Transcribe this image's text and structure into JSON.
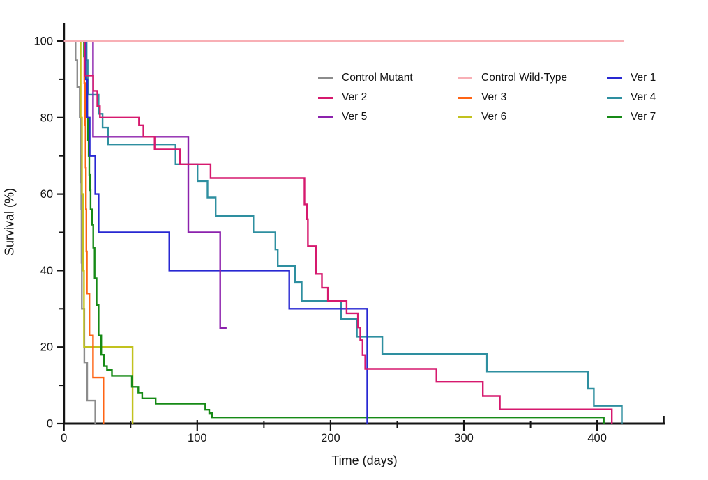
{
  "chart_data": {
    "type": "line",
    "subtype": "kaplan-meier-step-survival",
    "title": "",
    "xlabel": "Time (days)",
    "ylabel": "Survival (%)",
    "xlim": [
      0,
      450
    ],
    "ylim": [
      0,
      100
    ],
    "x_major_ticks": [
      0,
      100,
      200,
      300,
      400
    ],
    "x_minor_ticks": [
      50,
      150,
      250,
      350,
      450
    ],
    "y_major_ticks": [
      0,
      20,
      40,
      60,
      80,
      100
    ],
    "y_minor_ticks": [
      10,
      30,
      50,
      70,
      90
    ],
    "grid": false,
    "background": "#ffffff",
    "axis_color": "#141414",
    "legend_position": "inside-top-right",
    "legend_columns": [
      [
        "Control Mutant",
        "Ver 2",
        "Ver 5"
      ],
      [
        "Control Wild-Type",
        "Ver 3",
        "Ver 6"
      ],
      [
        "Ver 1",
        "Ver 4",
        "Ver 7"
      ]
    ],
    "series": [
      {
        "name": "Control Mutant",
        "color": "#8C8C8C",
        "points": [
          [
            0,
            100
          ],
          [
            8.7,
            95
          ],
          [
            10,
            88
          ],
          [
            11.8,
            80
          ],
          [
            12.3,
            70
          ],
          [
            12.7,
            63
          ],
          [
            13,
            56
          ],
          [
            13.2,
            42
          ],
          [
            13.4,
            30
          ],
          [
            15.3,
            16
          ],
          [
            17.4,
            6
          ],
          [
            23.5,
            0
          ]
        ]
      },
      {
        "name": "Ver 6",
        "color": "#C2C21E",
        "points": [
          [
            0,
            100
          ],
          [
            12.5,
            80
          ],
          [
            13.5,
            60
          ],
          [
            14.3,
            40
          ],
          [
            15,
            20
          ],
          [
            51.5,
            0
          ]
        ]
      },
      {
        "name": "Ver 3",
        "color": "#FF6414",
        "points": [
          [
            0,
            100
          ],
          [
            15.3,
            89
          ],
          [
            15.8,
            78
          ],
          [
            16.2,
            67
          ],
          [
            16.5,
            56
          ],
          [
            16.8,
            45
          ],
          [
            17.2,
            34
          ],
          [
            19.1,
            23
          ],
          [
            21.8,
            12
          ],
          [
            29.6,
            0
          ]
        ]
      },
      {
        "name": "Ver 7",
        "color": "#168A16",
        "points": [
          [
            0,
            100
          ],
          [
            15,
            96
          ],
          [
            16,
            91
          ],
          [
            17,
            86
          ],
          [
            17.5,
            80
          ],
          [
            18,
            74
          ],
          [
            18.5,
            70
          ],
          [
            19,
            65
          ],
          [
            19.5,
            61
          ],
          [
            20,
            56
          ],
          [
            21,
            52
          ],
          [
            22,
            46
          ],
          [
            23,
            38
          ],
          [
            24.5,
            31
          ],
          [
            26,
            23
          ],
          [
            28,
            18
          ],
          [
            30,
            15
          ],
          [
            32.3,
            14
          ],
          [
            36,
            12.5
          ],
          [
            50.9,
            9.6
          ],
          [
            55.8,
            8.1
          ],
          [
            58.7,
            6.6
          ],
          [
            68.8,
            5.2
          ],
          [
            106,
            3.6
          ],
          [
            109,
            2.7
          ],
          [
            111.2,
            1.6
          ],
          [
            405,
            0
          ]
        ]
      },
      {
        "name": "Ver 4",
        "color": "#2E8FA0",
        "points": [
          [
            0,
            100
          ],
          [
            17,
            95
          ],
          [
            17.8,
            90
          ],
          [
            18.3,
            86
          ],
          [
            26,
            81
          ],
          [
            29,
            77.4
          ],
          [
            33,
            73
          ],
          [
            83.7,
            67.8
          ],
          [
            100.2,
            63.4
          ],
          [
            107.7,
            59.1
          ],
          [
            113.8,
            54.3
          ],
          [
            142.1,
            50
          ],
          [
            158.6,
            45.5
          ],
          [
            160.4,
            41.2
          ],
          [
            173.4,
            37
          ],
          [
            178.3,
            32.1
          ],
          [
            208,
            27.3
          ],
          [
            219.7,
            22.7
          ],
          [
            238.8,
            18.2
          ],
          [
            317.3,
            13.6
          ],
          [
            393.2,
            9.1
          ],
          [
            397.5,
            4.6
          ],
          [
            418.5,
            0
          ]
        ]
      },
      {
        "name": "Ver 1",
        "color": "#2828D2",
        "points": [
          [
            0,
            100
          ],
          [
            16.5,
            90
          ],
          [
            17.5,
            80
          ],
          [
            19.3,
            70
          ],
          [
            23.5,
            60
          ],
          [
            26,
            50
          ],
          [
            79,
            40
          ],
          [
            169,
            30
          ],
          [
            227.5,
            0
          ]
        ]
      },
      {
        "name": "Ver 5",
        "color": "#8C22AD",
        "points": [
          [
            0,
            100
          ],
          [
            21.8,
            75
          ],
          [
            93.3,
            50
          ],
          [
            117.2,
            25
          ],
          [
            122,
            25
          ]
        ]
      },
      {
        "name": "Ver 2",
        "color": "#D6196E",
        "points": [
          [
            0,
            100
          ],
          [
            15.5,
            91
          ],
          [
            22,
            87
          ],
          [
            25,
            83
          ],
          [
            27,
            80
          ],
          [
            56.3,
            78
          ],
          [
            59.6,
            75
          ],
          [
            68,
            71.7
          ],
          [
            87,
            67.8
          ],
          [
            110,
            64.2
          ],
          [
            180.4,
            57.3
          ],
          [
            182.2,
            53.4
          ],
          [
            183,
            46.4
          ],
          [
            189,
            39.1
          ],
          [
            193.5,
            35.5
          ],
          [
            198,
            32.1
          ],
          [
            212,
            28.8
          ],
          [
            220.5,
            25.1
          ],
          [
            222.3,
            21.8
          ],
          [
            224,
            17.9
          ],
          [
            226,
            14.3
          ],
          [
            279.4,
            10.9
          ],
          [
            314.2,
            7.2
          ],
          [
            327,
            3.7
          ],
          [
            411,
            0
          ]
        ]
      },
      {
        "name": "Control Wild-Type",
        "color": "#F8AFB5",
        "points": [
          [
            0,
            100
          ],
          [
            420,
            100
          ]
        ]
      }
    ]
  }
}
